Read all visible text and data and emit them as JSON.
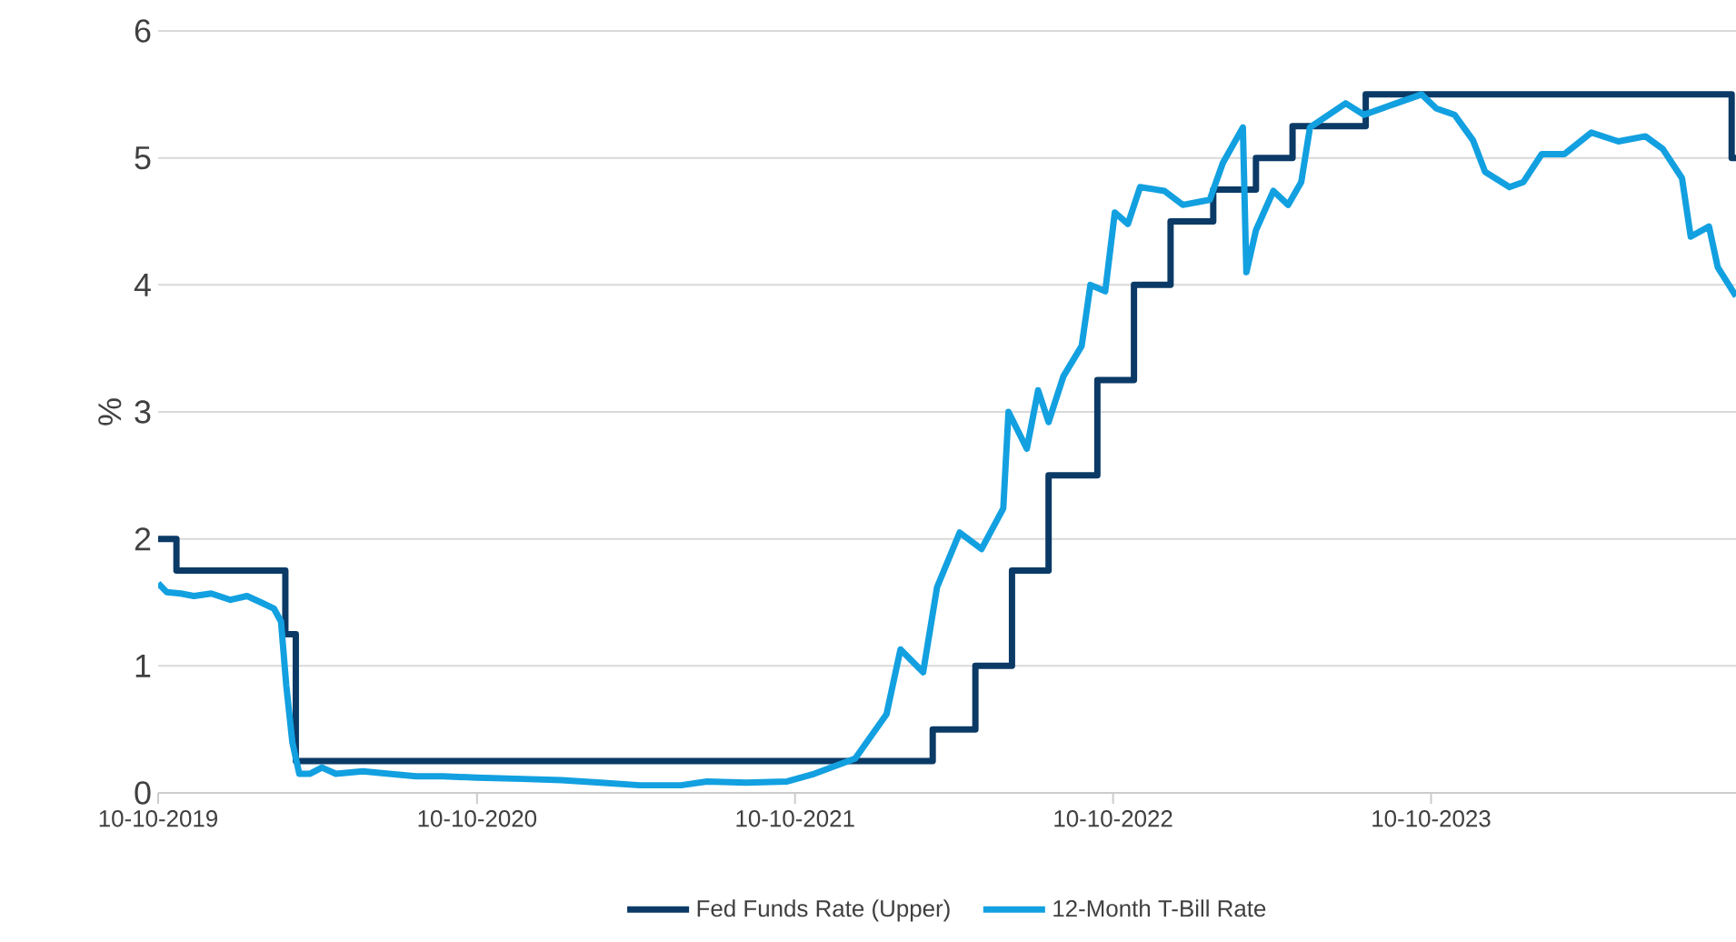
{
  "chart_data": {
    "type": "line",
    "ylabel": "%",
    "xlim": [
      "2019-10-10",
      "2024-09-24"
    ],
    "xticks": [
      {
        "value": "2019-10-10",
        "label": "10-10-2019"
      },
      {
        "value": "2020-10-10",
        "label": "10-10-2020"
      },
      {
        "value": "2021-10-10",
        "label": "10-10-2021"
      },
      {
        "value": "2022-10-10",
        "label": "10-10-2022"
      },
      {
        "value": "2023-10-10",
        "label": "10-10-2023"
      }
    ],
    "ylim": [
      0,
      6
    ],
    "yticks": [
      0,
      1,
      2,
      3,
      4,
      5,
      6
    ],
    "grid": "y",
    "legend": "bottom",
    "marker": "none",
    "line_style": "solid",
    "series": [
      {
        "name": "Fed Funds Rate (Upper)",
        "type": "step",
        "color": "#0b3a66",
        "x": [
          "2019-10-10",
          "2019-10-31",
          "2020-03-04",
          "2020-03-16",
          "2022-03-17",
          "2022-05-05",
          "2022-06-16",
          "2022-07-28",
          "2022-09-22",
          "2022-11-03",
          "2022-12-15",
          "2023-02-02",
          "2023-03-23",
          "2023-05-04",
          "2023-07-27",
          "2024-09-19",
          "2024-09-24"
        ],
        "values": [
          2.0,
          1.75,
          1.25,
          0.25,
          0.5,
          1.0,
          1.75,
          2.5,
          3.25,
          4.0,
          4.5,
          4.75,
          5.0,
          5.25,
          5.5,
          5.0,
          5.0
        ]
      },
      {
        "name": "12-Month T-Bill Rate",
        "type": "line",
        "color": "#12a0e0",
        "x": [
          "2019-10-10",
          "2019-10-20",
          "2019-11-05",
          "2019-11-20",
          "2019-12-10",
          "2020-01-01",
          "2020-01-20",
          "2020-02-05",
          "2020-02-20",
          "2020-02-28",
          "2020-03-05",
          "2020-03-12",
          "2020-03-20",
          "2020-04-01",
          "2020-04-15",
          "2020-05-01",
          "2020-06-01",
          "2020-07-01",
          "2020-08-01",
          "2020-09-01",
          "2020-10-10",
          "2020-12-01",
          "2021-01-15",
          "2021-03-01",
          "2021-04-15",
          "2021-06-01",
          "2021-07-01",
          "2021-08-15",
          "2021-10-01",
          "2021-11-01",
          "2021-12-18",
          "2022-01-23",
          "2022-02-08",
          "2022-03-06",
          "2022-03-22",
          "2022-04-17",
          "2022-05-12",
          "2022-06-06",
          "2022-06-12",
          "2022-07-03",
          "2022-07-16",
          "2022-07-28",
          "2022-08-14",
          "2022-09-04",
          "2022-09-14",
          "2022-10-01",
          "2022-10-12",
          "2022-10-27",
          "2022-11-10",
          "2022-12-08",
          "2022-12-29",
          "2023-01-29",
          "2023-02-13",
          "2023-03-08",
          "2023-03-12",
          "2023-03-23",
          "2023-04-12",
          "2023-04-29",
          "2023-05-14",
          "2023-05-24",
          "2023-07-04",
          "2023-07-25",
          "2023-08-31",
          "2023-09-29",
          "2023-10-16",
          "2023-11-06",
          "2023-11-27",
          "2023-12-11",
          "2024-01-08",
          "2024-01-24",
          "2024-02-14",
          "2024-03-11",
          "2024-04-11",
          "2024-05-12",
          "2024-06-12",
          "2024-07-02",
          "2024-07-24",
          "2024-08-03",
          "2024-08-24",
          "2024-09-03",
          "2024-09-24"
        ],
        "values": [
          1.65,
          1.58,
          1.57,
          1.55,
          1.57,
          1.52,
          1.55,
          1.5,
          1.45,
          1.35,
          0.85,
          0.4,
          0.15,
          0.15,
          0.2,
          0.15,
          0.17,
          0.15,
          0.13,
          0.13,
          0.12,
          0.11,
          0.1,
          0.08,
          0.06,
          0.06,
          0.09,
          0.08,
          0.09,
          0.15,
          0.27,
          0.62,
          1.13,
          0.95,
          1.62,
          2.05,
          1.92,
          2.24,
          3.0,
          2.71,
          3.17,
          2.92,
          3.28,
          3.52,
          4.0,
          3.95,
          4.57,
          4.48,
          4.77,
          4.74,
          4.63,
          4.67,
          4.96,
          5.24,
          4.1,
          4.43,
          4.74,
          4.63,
          4.81,
          5.24,
          5.43,
          5.34,
          5.43,
          5.5,
          5.39,
          5.34,
          5.14,
          4.89,
          4.77,
          4.81,
          5.03,
          5.03,
          5.2,
          5.13,
          5.17,
          5.07,
          4.84,
          4.38,
          4.46,
          4.14,
          3.91
        ]
      }
    ]
  }
}
